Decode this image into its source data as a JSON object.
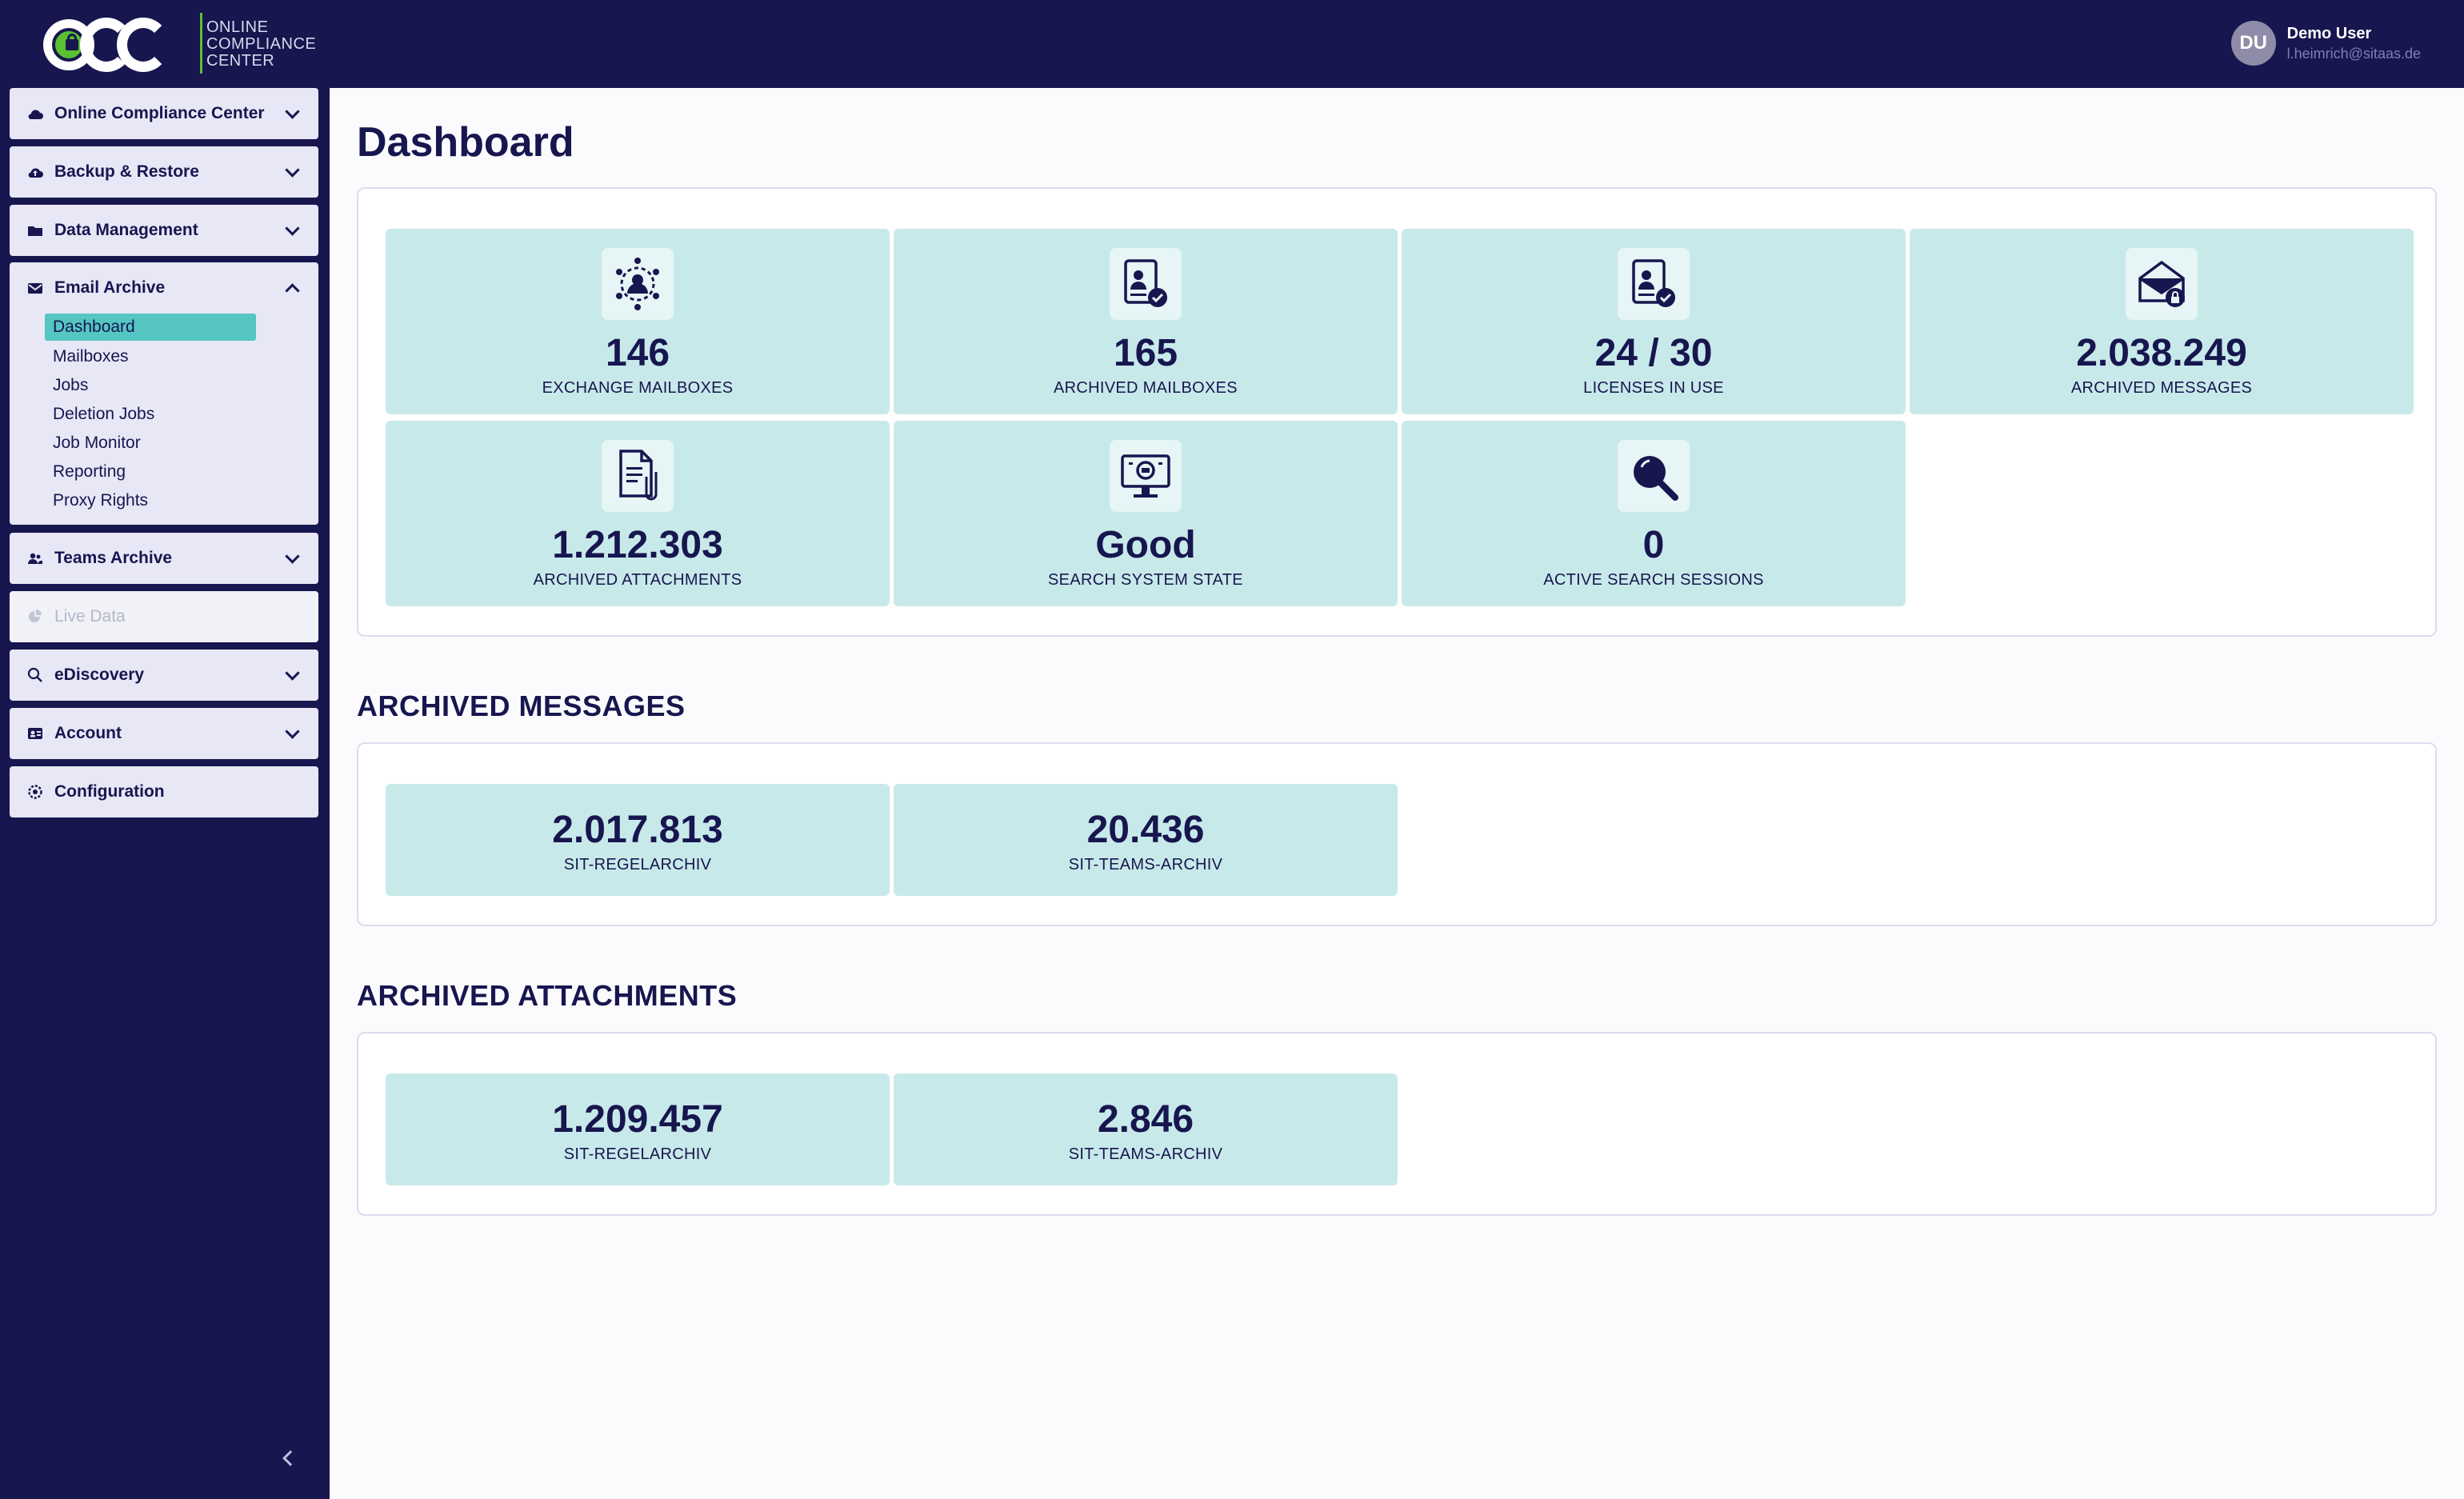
{
  "app": {
    "logo_text": [
      "ONLINE",
      "COMPLIANCE",
      "CENTER"
    ],
    "user": {
      "initials": "DU",
      "name": "Demo User",
      "email": "l.heimrich@sitaas.de"
    }
  },
  "sidebar": {
    "items": [
      {
        "label": "Online Compliance Center",
        "icon": "cloud-icon"
      },
      {
        "label": "Backup & Restore",
        "icon": "cloud-upload-icon"
      },
      {
        "label": "Data Management",
        "icon": "folder-icon"
      },
      {
        "label": "Email Archive",
        "icon": "envelope-icon",
        "expanded": true,
        "children": [
          "Dashboard",
          "Mailboxes",
          "Jobs",
          "Deletion Jobs",
          "Job Monitor",
          "Reporting",
          "Proxy Rights"
        ],
        "active_child": "Dashboard"
      },
      {
        "label": "Teams Archive",
        "icon": "users-icon"
      },
      {
        "label": "Live Data",
        "icon": "chart-icon",
        "disabled": true
      },
      {
        "label": "eDiscovery",
        "icon": "search-icon"
      },
      {
        "label": "Account",
        "icon": "id-card-icon"
      },
      {
        "label": "Configuration",
        "icon": "gear-icon"
      }
    ]
  },
  "main": {
    "title": "Dashboard",
    "stats": [
      {
        "value": "146",
        "label": "EXCHANGE MAILBOXES",
        "icon": "network-user-icon"
      },
      {
        "value": "165",
        "label": "ARCHIVED MAILBOXES",
        "icon": "user-card-lock-icon"
      },
      {
        "value": "24 / 30",
        "label": "LICENSES IN USE",
        "icon": "user-card-check-icon"
      },
      {
        "value": "2.038.249",
        "label": "ARCHIVED MESSAGES",
        "icon": "envelope-lock-icon"
      },
      {
        "value": "1.212.303",
        "label": "ARCHIVED ATTACHMENTS",
        "icon": "document-attachment-icon"
      },
      {
        "value": "Good",
        "label": "SEARCH SYSTEM STATE",
        "icon": "monitor-search-icon"
      },
      {
        "value": "0",
        "label": "ACTIVE SEARCH SESSIONS",
        "icon": "magnifier-icon"
      }
    ],
    "archived_messages": {
      "title": "ARCHIVED MESSAGES",
      "tiles": [
        {
          "value": "2.017.813",
          "label": "SIT-REGELARCHIV"
        },
        {
          "value": "20.436",
          "label": "SIT-TEAMS-ARCHIV"
        }
      ]
    },
    "archived_attachments": {
      "title": "ARCHIVED ATTACHMENTS",
      "tiles": [
        {
          "value": "1.209.457",
          "label": "SIT-REGELARCHIV"
        },
        {
          "value": "2.846",
          "label": "SIT-TEAMS-ARCHIV"
        }
      ]
    }
  },
  "colors": {
    "navy": "#17164f",
    "tile": "#c8e9ea",
    "accent": "#55c6c2",
    "logo_green": "#59c132",
    "nav_bg": "#e7e7f6"
  }
}
